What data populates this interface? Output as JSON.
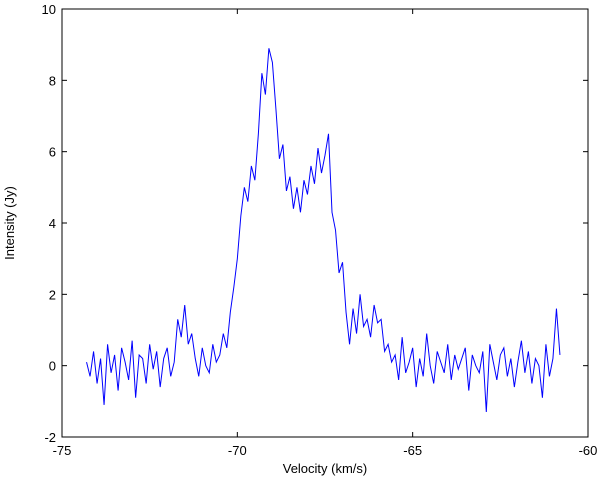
{
  "chart_data": {
    "type": "line",
    "xlabel": "Velocity (km/s)",
    "ylabel": "Intensity (Jy)",
    "xlim": [
      -75,
      -60
    ],
    "xticks": [
      -75,
      -70,
      -65,
      -60
    ],
    "ylim": [
      -2,
      10
    ],
    "yticks": [
      -2,
      0,
      2,
      4,
      6,
      8,
      10
    ],
    "x": [
      -74.3,
      -74.2,
      -74.1,
      -74.0,
      -73.9,
      -73.8,
      -73.7,
      -73.6,
      -73.5,
      -73.4,
      -73.3,
      -73.2,
      -73.1,
      -73.0,
      -72.9,
      -72.8,
      -72.7,
      -72.6,
      -72.5,
      -72.4,
      -72.3,
      -72.2,
      -72.1,
      -72.0,
      -71.9,
      -71.8,
      -71.7,
      -71.6,
      -71.5,
      -71.4,
      -71.3,
      -71.2,
      -71.1,
      -71.0,
      -70.9,
      -70.8,
      -70.7,
      -70.6,
      -70.5,
      -70.4,
      -70.3,
      -70.2,
      -70.1,
      -70.0,
      -69.9,
      -69.8,
      -69.7,
      -69.6,
      -69.5,
      -69.4,
      -69.3,
      -69.2,
      -69.1,
      -69.0,
      -68.9,
      -68.8,
      -68.7,
      -68.6,
      -68.5,
      -68.4,
      -68.3,
      -68.2,
      -68.1,
      -68.0,
      -67.9,
      -67.8,
      -67.7,
      -67.6,
      -67.5,
      -67.4,
      -67.3,
      -67.2,
      -67.1,
      -67.0,
      -66.9,
      -66.8,
      -66.7,
      -66.6,
      -66.5,
      -66.4,
      -66.3,
      -66.2,
      -66.1,
      -66.0,
      -65.9,
      -65.8,
      -65.7,
      -65.6,
      -65.5,
      -65.4,
      -65.3,
      -65.2,
      -65.1,
      -65.0,
      -64.9,
      -64.8,
      -64.7,
      -64.6,
      -64.5,
      -64.4,
      -64.3,
      -64.2,
      -64.1,
      -64.0,
      -63.9,
      -63.8,
      -63.7,
      -63.6,
      -63.5,
      -63.4,
      -63.3,
      -63.2,
      -63.1,
      -63.0,
      -62.9,
      -62.8,
      -62.7,
      -62.6,
      -62.5,
      -62.4,
      -62.3,
      -62.2,
      -62.1,
      -62.0,
      -61.9,
      -61.8,
      -61.7,
      -61.6,
      -61.5,
      -61.4,
      -61.3,
      -61.2,
      -61.1,
      -61.0,
      -60.9,
      -60.8
    ],
    "series": [
      {
        "color": "#0000ff",
        "values": [
          0.1,
          -0.3,
          0.4,
          -0.5,
          0.2,
          -1.1,
          0.6,
          -0.2,
          0.3,
          -0.7,
          0.5,
          0.1,
          -0.4,
          0.7,
          -0.9,
          0.3,
          0.2,
          -0.5,
          0.6,
          -0.1,
          0.4,
          -0.6,
          0.2,
          0.5,
          -0.3,
          0.1,
          1.3,
          0.8,
          1.7,
          0.6,
          0.9,
          0.2,
          -0.3,
          0.5,
          0.0,
          -0.2,
          0.6,
          0.1,
          0.3,
          0.9,
          0.5,
          1.5,
          2.2,
          3.0,
          4.2,
          5.0,
          4.6,
          5.6,
          5.2,
          6.5,
          8.2,
          7.6,
          8.9,
          8.5,
          7.2,
          5.8,
          6.2,
          4.9,
          5.3,
          4.4,
          5.0,
          4.3,
          5.2,
          4.8,
          5.6,
          5.1,
          6.1,
          5.4,
          5.9,
          6.5,
          4.3,
          3.8,
          2.6,
          2.9,
          1.5,
          0.6,
          1.6,
          0.9,
          2.0,
          1.1,
          1.3,
          0.8,
          1.7,
          1.2,
          1.3,
          0.4,
          0.6,
          0.1,
          0.3,
          -0.4,
          0.8,
          -0.2,
          0.1,
          0.5,
          -0.6,
          0.2,
          -0.3,
          0.9,
          0.0,
          -0.5,
          0.4,
          0.1,
          -0.2,
          0.6,
          -0.4,
          0.3,
          -0.1,
          0.2,
          0.5,
          -0.7,
          0.3,
          0.0,
          -0.2,
          0.4,
          -1.3,
          0.6,
          0.1,
          -0.4,
          0.3,
          0.5,
          -0.3,
          0.2,
          -0.6,
          0.1,
          0.7,
          -0.2,
          0.4,
          -0.5,
          0.2,
          0.0,
          -0.9,
          0.6,
          -0.3,
          0.2,
          1.6,
          0.3
        ]
      }
    ]
  }
}
